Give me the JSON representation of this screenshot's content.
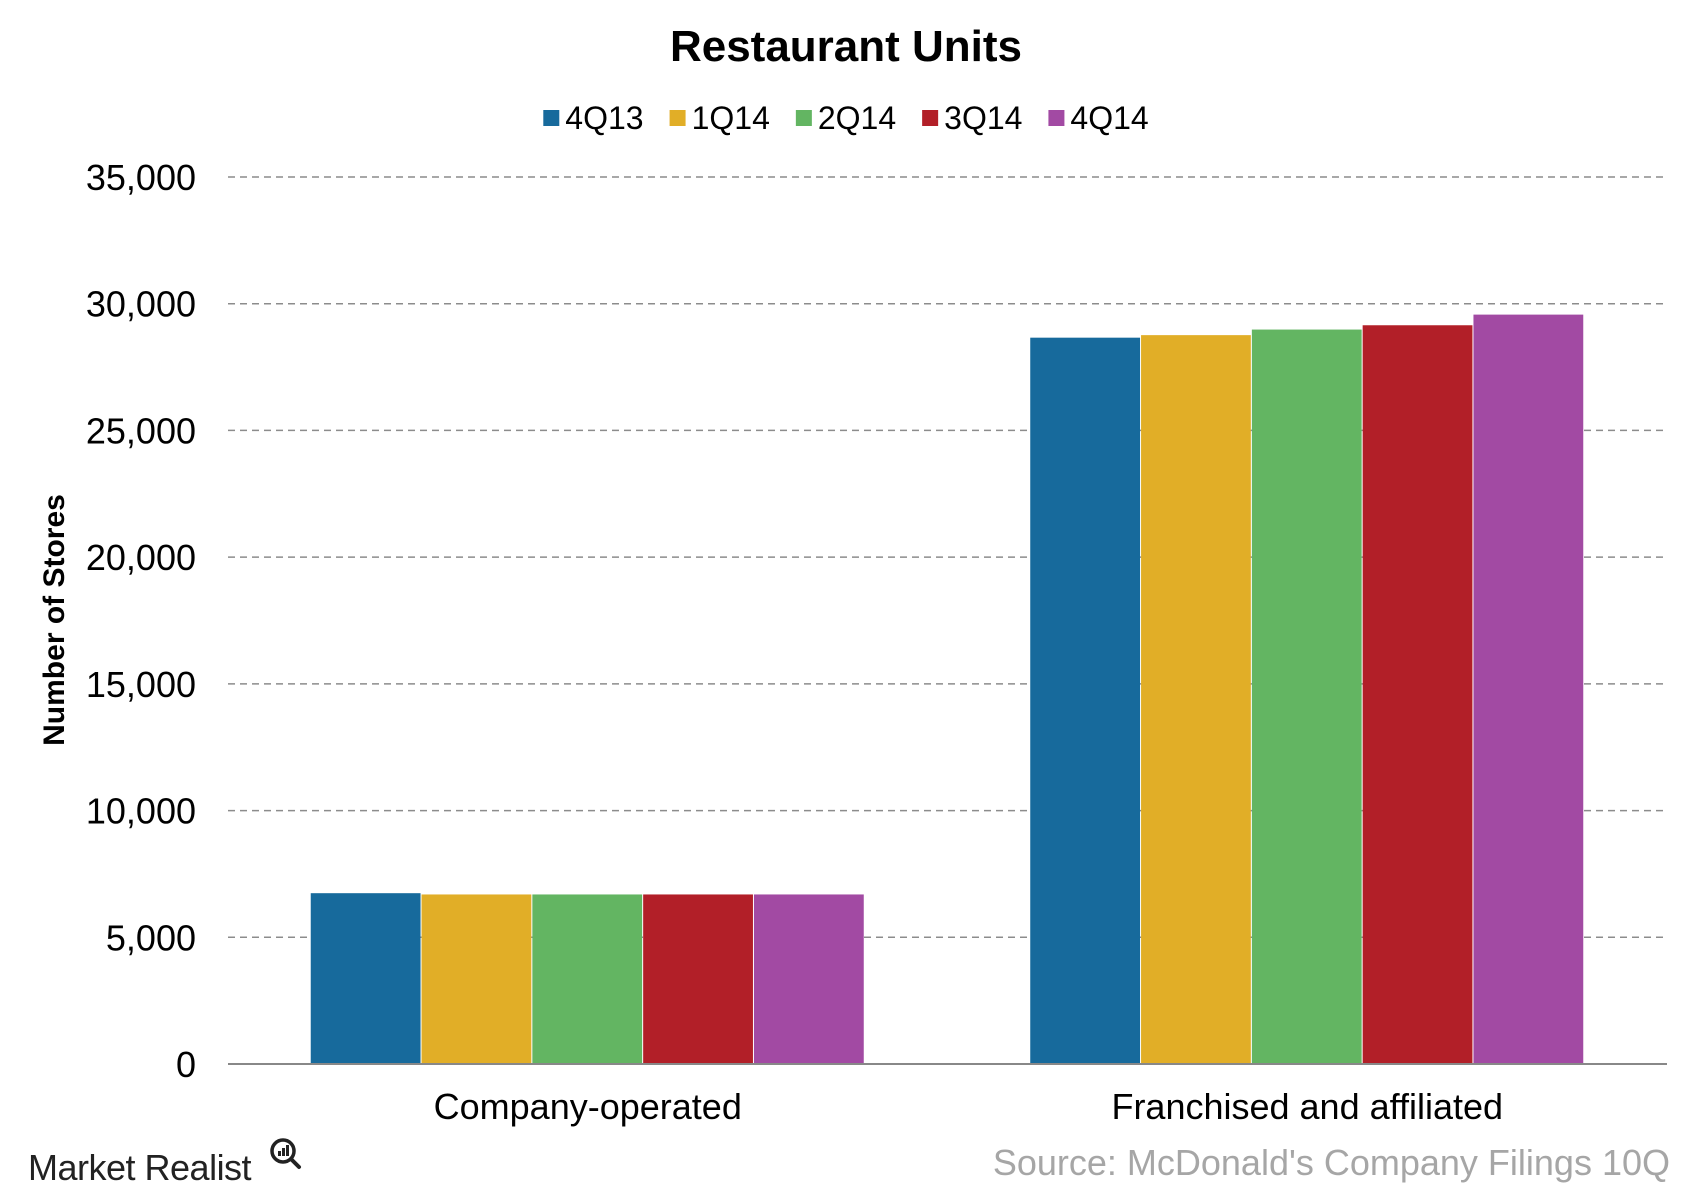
{
  "chart_data": {
    "type": "bar",
    "title": "Restaurant Units",
    "ylabel": "Number of Stores",
    "xlabel": "",
    "categories": [
      "Company-operated",
      "Franchised and affiliated"
    ],
    "series": [
      {
        "name": "4Q13",
        "color": "#176A9C",
        "values": [
          6740,
          28660
        ]
      },
      {
        "name": "1Q14",
        "color": "#E1AE27",
        "values": [
          6690,
          28760
        ]
      },
      {
        "name": "2Q14",
        "color": "#63B562",
        "values": [
          6690,
          28980
        ]
      },
      {
        "name": "3Q14",
        "color": "#B21F28",
        "values": [
          6690,
          29150
        ]
      },
      {
        "name": "4Q14",
        "color": "#A24AA3",
        "values": [
          6690,
          29570
        ]
      }
    ],
    "ylim": [
      0,
      35000
    ],
    "yticks": [
      0,
      5000,
      10000,
      15000,
      20000,
      25000,
      30000,
      35000
    ],
    "ytick_labels": [
      "0",
      "5,000",
      "10,000",
      "15,000",
      "20,000",
      "25,000",
      "30,000",
      "35,000"
    ],
    "grid": true,
    "legend_position": "top-center"
  },
  "source_text": "Source: McDonald's Company Filings 10Q",
  "brand_text": "Market Realist",
  "brand_icon": "magnifier-chart-icon",
  "colors": {
    "grid": "#8c8c8c",
    "axis": "#888888",
    "source": "#a6a6a6",
    "brand": "#222222"
  }
}
